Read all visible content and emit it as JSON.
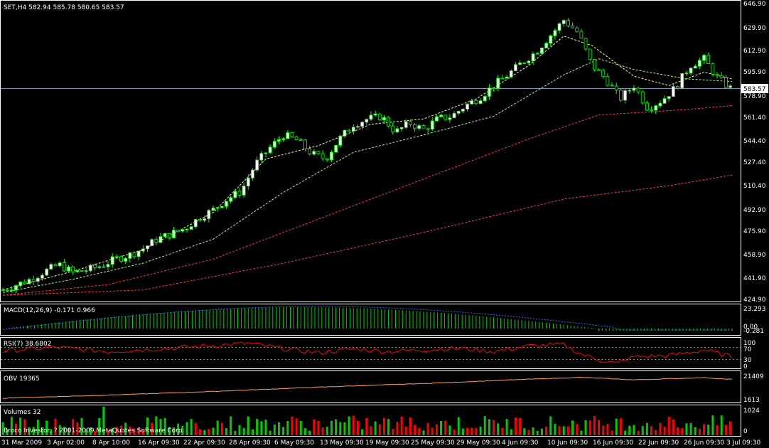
{
  "main": {
    "title": "SET,H4  582.94 585.78 580.65 583.57",
    "current_price": "583.57",
    "price_labels": [
      "646.90",
      "629.90",
      "612.90",
      "595.90",
      "578.90",
      "561.40",
      "544.40",
      "527.40",
      "510.40",
      "492.90",
      "475.90",
      "458.90",
      "441.90",
      "424.90"
    ]
  },
  "macd": {
    "title": "MACD(12,26,9) -0.171 0.966",
    "labels": [
      "23.293",
      "0.00",
      "-0.281"
    ]
  },
  "rsi": {
    "title": "RSI(7) 38.6802",
    "labels": [
      "100",
      "70",
      "30",
      "0"
    ]
  },
  "obv": {
    "title": "OBV 19365",
    "labels": [
      "21409",
      "1613"
    ]
  },
  "volumes": {
    "title": "Volumes 32",
    "labels": [
      "1024",
      "0"
    ],
    "copyright": "Broco Investor, ? 2001-2009 MetaQuotes Software Corp."
  },
  "time_labels": [
    "31 Mar 2009",
    "3 Apr 02:00",
    "8 Apr 10:00",
    "16 Apr 09:30",
    "22 Apr 09:30",
    "28 Apr 09:30",
    "6 May 09:30",
    "13 May 09:30",
    "19 May 09:30",
    "25 May 09:30",
    "29 May 09:30",
    "4 Jun 09:30",
    "10 Jun 09:30",
    "16 Jun 09:30",
    "22 Jun 09:30",
    "26 Jun 09:30",
    "3 Jul 09:30"
  ],
  "colors": {
    "background": "#000000",
    "frame": "#ffffff",
    "bull_candle": "#ffffff",
    "bear_candle": "#000000",
    "wick": "#00ff00",
    "ma_fast": "#ffff66",
    "ma_mid": "#99ff66",
    "ma_slow": "#ff3333",
    "macd_hist": "#00cc00",
    "macd_signal": "#3366ff",
    "rsi": "#ff0000",
    "obv": "#ffa040",
    "vol_up": "#00cc00",
    "vol_down": "#ff0000",
    "price_line": "#7f94b8"
  },
  "chart_data": {
    "type": "candlestick",
    "symbol": "SET",
    "timeframe": "H4",
    "ylim": [
      424.9,
      646.9
    ],
    "close_points": [
      [
        0,
        432
      ],
      [
        8,
        436
      ],
      [
        16,
        440
      ],
      [
        24,
        446
      ],
      [
        32,
        451
      ],
      [
        40,
        445
      ],
      [
        48,
        447
      ],
      [
        56,
        450
      ],
      [
        64,
        455
      ],
      [
        72,
        458
      ],
      [
        80,
        463
      ],
      [
        88,
        470
      ],
      [
        96,
        474
      ],
      [
        104,
        478
      ],
      [
        112,
        486
      ],
      [
        120,
        492
      ],
      [
        128,
        500
      ],
      [
        136,
        506
      ],
      [
        144,
        526
      ],
      [
        152,
        538
      ],
      [
        160,
        548
      ],
      [
        168,
        544
      ],
      [
        176,
        534
      ],
      [
        184,
        530
      ],
      [
        192,
        545
      ],
      [
        200,
        556
      ],
      [
        208,
        560
      ],
      [
        216,
        562
      ],
      [
        224,
        550
      ],
      [
        232,
        557
      ],
      [
        240,
        552
      ],
      [
        248,
        560
      ],
      [
        256,
        562
      ],
      [
        264,
        570
      ],
      [
        272,
        576
      ],
      [
        280,
        585
      ],
      [
        288,
        593
      ],
      [
        296,
        602
      ],
      [
        304,
        610
      ],
      [
        312,
        622
      ],
      [
        320,
        634
      ],
      [
        328,
        625
      ],
      [
        336,
        600
      ],
      [
        344,
        590
      ],
      [
        352,
        575
      ],
      [
        360,
        585
      ],
      [
        368,
        568
      ],
      [
        376,
        574
      ],
      [
        384,
        584
      ],
      [
        392,
        600
      ],
      [
        400,
        605
      ],
      [
        408,
        590
      ],
      [
        416,
        582
      ]
    ],
    "ma_fast": [
      [
        0,
        432
      ],
      [
        40,
        446
      ],
      [
        80,
        462
      ],
      [
        120,
        490
      ],
      [
        150,
        530
      ],
      [
        180,
        540
      ],
      [
        210,
        556
      ],
      [
        240,
        560
      ],
      [
        270,
        575
      ],
      [
        300,
        600
      ],
      [
        320,
        622
      ],
      [
        336,
        615
      ],
      [
        360,
        592
      ],
      [
        380,
        585
      ],
      [
        400,
        595
      ],
      [
        416,
        590
      ]
    ],
    "ma_mid": [
      [
        0,
        430
      ],
      [
        40,
        440
      ],
      [
        80,
        452
      ],
      [
        120,
        470
      ],
      [
        160,
        505
      ],
      [
        200,
        535
      ],
      [
        240,
        548
      ],
      [
        280,
        562
      ],
      [
        320,
        593
      ],
      [
        340,
        605
      ],
      [
        360,
        597
      ],
      [
        390,
        590
      ],
      [
        416,
        588
      ]
    ],
    "ma_slow_1": [
      [
        0,
        428
      ],
      [
        60,
        436
      ],
      [
        120,
        455
      ],
      [
        180,
        485
      ],
      [
        240,
        515
      ],
      [
        300,
        545
      ],
      [
        340,
        563
      ],
      [
        390,
        567
      ],
      [
        416,
        570
      ]
    ],
    "ma_slow_2": [
      [
        0,
        428
      ],
      [
        80,
        432
      ],
      [
        160,
        452
      ],
      [
        240,
        475
      ],
      [
        320,
        500
      ],
      [
        380,
        510
      ],
      [
        416,
        518
      ]
    ],
    "rsi": [
      [
        0,
        62
      ],
      [
        30,
        75
      ],
      [
        60,
        60
      ],
      [
        90,
        70
      ],
      [
        120,
        82
      ],
      [
        140,
        90
      ],
      [
        160,
        70
      ],
      [
        180,
        55
      ],
      [
        200,
        70
      ],
      [
        220,
        60
      ],
      [
        240,
        66
      ],
      [
        260,
        72
      ],
      [
        280,
        60
      ],
      [
        300,
        80
      ],
      [
        320,
        85
      ],
      [
        330,
        50
      ],
      [
        340,
        30
      ],
      [
        350,
        15
      ],
      [
        360,
        40
      ],
      [
        380,
        45
      ],
      [
        400,
        65
      ],
      [
        416,
        40
      ]
    ],
    "obv": [
      [
        0,
        4000
      ],
      [
        60,
        6500
      ],
      [
        120,
        9500
      ],
      [
        180,
        13000
      ],
      [
        240,
        16000
      ],
      [
        300,
        19500
      ],
      [
        330,
        21000
      ],
      [
        360,
        19000
      ],
      [
        400,
        20800
      ],
      [
        416,
        19365
      ]
    ]
  }
}
